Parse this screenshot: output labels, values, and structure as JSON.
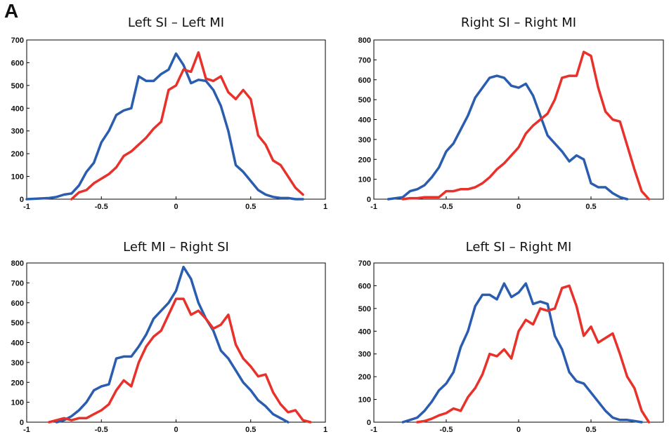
{
  "figure_label": "A",
  "colors": {
    "series_red": "#e8312b",
    "series_blue": "#2a5db0"
  },
  "chart_data": [
    {
      "type": "line",
      "title": "Left SI – Left MI",
      "xlim": [
        -1,
        1
      ],
      "ylim": [
        0,
        700
      ],
      "xticks": [
        -1,
        -0.5,
        0,
        0.5,
        1
      ],
      "yticks": [
        0,
        100,
        200,
        300,
        400,
        500,
        600,
        700
      ],
      "series": [
        {
          "color": "#2a5db0",
          "x": [
            -1,
            -0.85,
            -0.8,
            -0.75,
            -0.7,
            -0.65,
            -0.6,
            -0.55,
            -0.5,
            -0.45,
            -0.4,
            -0.35,
            -0.3,
            -0.25,
            -0.2,
            -0.15,
            -0.1,
            -0.05,
            0,
            0.05,
            0.1,
            0.15,
            0.2,
            0.25,
            0.3,
            0.35,
            0.4,
            0.45,
            0.5,
            0.55,
            0.6,
            0.65,
            0.7,
            0.75,
            0.8,
            0.85
          ],
          "y": [
            0,
            5,
            10,
            20,
            25,
            60,
            120,
            160,
            250,
            300,
            370,
            390,
            400,
            540,
            520,
            520,
            550,
            570,
            640,
            590,
            510,
            525,
            520,
            480,
            410,
            300,
            150,
            120,
            80,
            40,
            20,
            10,
            5,
            5,
            0,
            0
          ]
        },
        {
          "color": "#e8312b",
          "x": [
            -0.7,
            -0.65,
            -0.6,
            -0.55,
            -0.5,
            -0.45,
            -0.4,
            -0.35,
            -0.3,
            -0.25,
            -0.2,
            -0.15,
            -0.1,
            -0.05,
            0,
            0.05,
            0.1,
            0.15,
            0.2,
            0.25,
            0.3,
            0.35,
            0.4,
            0.45,
            0.5,
            0.55,
            0.6,
            0.65,
            0.7,
            0.75,
            0.8,
            0.85
          ],
          "y": [
            0,
            30,
            40,
            70,
            90,
            110,
            140,
            190,
            210,
            240,
            270,
            310,
            340,
            480,
            500,
            570,
            560,
            645,
            530,
            520,
            540,
            470,
            440,
            480,
            440,
            280,
            240,
            170,
            150,
            100,
            50,
            20
          ]
        }
      ]
    },
    {
      "type": "line",
      "title": "Right SI – Right MI",
      "xlim": [
        -1,
        1
      ],
      "ylim": [
        0,
        800
      ],
      "xticks": [
        -1,
        -0.5,
        0,
        0.5
      ],
      "yticks": [
        0,
        100,
        200,
        300,
        400,
        500,
        600,
        700,
        800
      ],
      "series": [
        {
          "color": "#2a5db0",
          "x": [
            -0.9,
            -0.8,
            -0.75,
            -0.7,
            -0.65,
            -0.6,
            -0.55,
            -0.5,
            -0.45,
            -0.4,
            -0.35,
            -0.3,
            -0.25,
            -0.2,
            -0.15,
            -0.1,
            -0.05,
            0,
            0.05,
            0.1,
            0.15,
            0.2,
            0.25,
            0.3,
            0.35,
            0.4,
            0.45,
            0.5,
            0.55,
            0.6,
            0.65,
            0.7,
            0.75
          ],
          "y": [
            0,
            10,
            40,
            50,
            70,
            110,
            160,
            240,
            280,
            350,
            420,
            510,
            560,
            610,
            620,
            610,
            570,
            560,
            580,
            520,
            420,
            320,
            280,
            240,
            190,
            220,
            200,
            80,
            60,
            60,
            30,
            10,
            0
          ]
        },
        {
          "color": "#e8312b",
          "x": [
            -0.8,
            -0.75,
            -0.7,
            -0.65,
            -0.6,
            -0.55,
            -0.5,
            -0.45,
            -0.4,
            -0.35,
            -0.3,
            -0.25,
            -0.2,
            -0.15,
            -0.1,
            -0.05,
            0,
            0.05,
            0.1,
            0.15,
            0.2,
            0.25,
            0.3,
            0.35,
            0.4,
            0.45,
            0.5,
            0.55,
            0.6,
            0.65,
            0.7,
            0.75,
            0.8,
            0.85,
            0.9
          ],
          "y": [
            0,
            5,
            5,
            10,
            10,
            10,
            40,
            40,
            50,
            50,
            60,
            80,
            110,
            150,
            180,
            220,
            260,
            330,
            370,
            400,
            430,
            500,
            610,
            620,
            620,
            740,
            720,
            560,
            440,
            400,
            390,
            270,
            150,
            40,
            0
          ]
        }
      ]
    },
    {
      "type": "line",
      "title": "Left MI – Right SI",
      "xlim": [
        -1,
        1
      ],
      "ylim": [
        0,
        800
      ],
      "xticks": [
        -1,
        -0.5,
        0,
        0.5,
        1
      ],
      "yticks": [
        0,
        100,
        200,
        300,
        400,
        500,
        600,
        700,
        800
      ],
      "series": [
        {
          "color": "#2a5db0",
          "x": [
            -0.8,
            -0.75,
            -0.7,
            -0.65,
            -0.6,
            -0.55,
            -0.5,
            -0.45,
            -0.4,
            -0.35,
            -0.3,
            -0.25,
            -0.2,
            -0.15,
            -0.1,
            -0.05,
            0,
            0.05,
            0.1,
            0.15,
            0.2,
            0.25,
            0.3,
            0.35,
            0.4,
            0.45,
            0.5,
            0.55,
            0.6,
            0.65,
            0.7,
            0.75
          ],
          "y": [
            0,
            10,
            30,
            60,
            100,
            160,
            180,
            190,
            320,
            330,
            330,
            380,
            440,
            520,
            560,
            600,
            660,
            780,
            720,
            600,
            520,
            460,
            360,
            320,
            260,
            200,
            160,
            110,
            80,
            40,
            20,
            0
          ]
        },
        {
          "color": "#e8312b",
          "x": [
            -0.85,
            -0.8,
            -0.75,
            -0.7,
            -0.65,
            -0.6,
            -0.55,
            -0.5,
            -0.45,
            -0.4,
            -0.35,
            -0.3,
            -0.25,
            -0.2,
            -0.15,
            -0.1,
            -0.05,
            0,
            0.05,
            0.1,
            0.15,
            0.2,
            0.25,
            0.3,
            0.35,
            0.4,
            0.45,
            0.5,
            0.55,
            0.6,
            0.65,
            0.7,
            0.75,
            0.8,
            0.85,
            0.9
          ],
          "y": [
            0,
            10,
            20,
            10,
            20,
            20,
            40,
            60,
            90,
            160,
            210,
            180,
            300,
            380,
            430,
            460,
            540,
            620,
            620,
            540,
            560,
            520,
            470,
            490,
            540,
            390,
            320,
            280,
            230,
            240,
            150,
            90,
            50,
            60,
            10,
            0
          ]
        }
      ]
    },
    {
      "type": "line",
      "title": "Left SI – Right MI",
      "xlim": [
        -1,
        1
      ],
      "ylim": [
        0,
        700
      ],
      "xticks": [
        -1,
        -0.5,
        0,
        0.5
      ],
      "yticks": [
        0,
        100,
        200,
        300,
        400,
        500,
        600,
        700
      ],
      "series": [
        {
          "color": "#2a5db0",
          "x": [
            -0.8,
            -0.75,
            -0.7,
            -0.65,
            -0.6,
            -0.55,
            -0.5,
            -0.45,
            -0.4,
            -0.35,
            -0.3,
            -0.25,
            -0.2,
            -0.15,
            -0.1,
            -0.05,
            0,
            0.05,
            0.1,
            0.15,
            0.2,
            0.25,
            0.3,
            0.35,
            0.4,
            0.45,
            0.5,
            0.55,
            0.6,
            0.65,
            0.7,
            0.75,
            0.8,
            0.85
          ],
          "y": [
            0,
            10,
            20,
            50,
            90,
            140,
            170,
            220,
            330,
            400,
            510,
            560,
            560,
            540,
            610,
            550,
            570,
            610,
            520,
            530,
            520,
            380,
            320,
            220,
            180,
            170,
            130,
            90,
            50,
            20,
            10,
            10,
            5,
            0
          ]
        },
        {
          "color": "#e8312b",
          "x": [
            -0.7,
            -0.65,
            -0.6,
            -0.55,
            -0.5,
            -0.45,
            -0.4,
            -0.35,
            -0.3,
            -0.25,
            -0.2,
            -0.15,
            -0.1,
            -0.05,
            0,
            0.05,
            0.1,
            0.15,
            0.2,
            0.25,
            0.3,
            0.35,
            0.4,
            0.45,
            0.5,
            0.55,
            0.6,
            0.65,
            0.7,
            0.75,
            0.8,
            0.85,
            0.9
          ],
          "y": [
            0,
            5,
            15,
            30,
            40,
            60,
            50,
            110,
            150,
            210,
            300,
            290,
            320,
            280,
            400,
            450,
            430,
            500,
            490,
            500,
            590,
            600,
            510,
            380,
            420,
            350,
            370,
            390,
            300,
            200,
            150,
            50,
            0
          ]
        }
      ]
    }
  ]
}
